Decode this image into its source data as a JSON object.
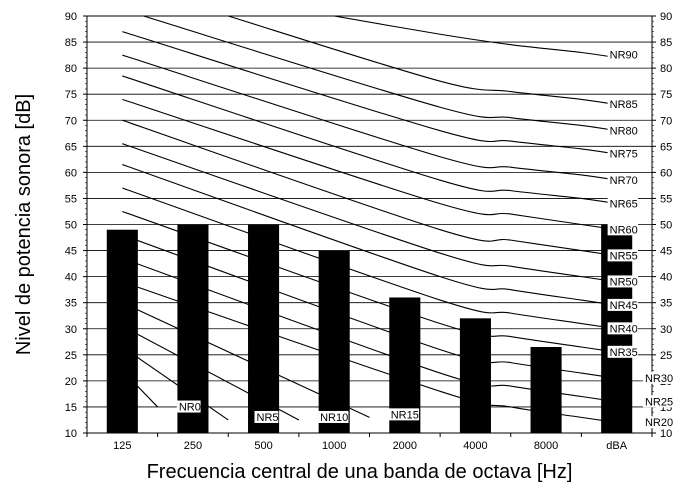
{
  "chart_data": {
    "type": "bar",
    "title": "",
    "xlabel": "Frecuencia central de una banda de octava [Hz]",
    "ylabel": "Nivel de potencia sonora [dB]",
    "ylim": [
      10,
      90
    ],
    "yticks": [
      10,
      15,
      20,
      25,
      30,
      35,
      40,
      45,
      50,
      55,
      60,
      65,
      70,
      75,
      80,
      85,
      90
    ],
    "grid": true,
    "categories": [
      "125",
      "250",
      "500",
      "1000",
      "2000",
      "4000",
      "8000",
      "dBA"
    ],
    "series": [
      {
        "values": [
          49,
          50,
          50,
          45,
          36,
          32,
          26.5,
          50
        ],
        "color": "#000000"
      }
    ],
    "nr_curves": {
      "labels": [
        "NR0",
        "NR5",
        "NR10",
        "NR15",
        "NR20",
        "NR25",
        "NR30",
        "NR35",
        "NR40",
        "NR45",
        "NR50",
        "NR55",
        "NR60",
        "NR65",
        "NR70",
        "NR75",
        "NR80",
        "NR85",
        "NR90"
      ],
      "points": [
        [
          [
            0.5,
            22
          ],
          [
            1,
            15
          ]
        ],
        [
          [
            0.5,
            26.5
          ],
          [
            2,
            12.5
          ]
        ],
        [
          [
            0.5,
            30.5
          ],
          [
            3,
            12.5
          ]
        ],
        [
          [
            0.5,
            35
          ],
          [
            4,
            13
          ]
        ],
        [
          [
            0.5,
            39
          ],
          [
            5,
            18
          ],
          [
            6,
            15
          ],
          [
            7,
            13
          ],
          [
            7.5,
            12
          ]
        ],
        [
          [
            0.5,
            43.5
          ],
          [
            5,
            21.5
          ],
          [
            6,
            19
          ],
          [
            7,
            17
          ],
          [
            7.5,
            16
          ]
        ],
        [
          [
            0.5,
            48
          ],
          [
            5,
            26
          ],
          [
            6,
            23.5
          ],
          [
            7,
            21.5
          ],
          [
            7.5,
            20.5
          ]
        ],
        [
          [
            0.5,
            52.5
          ],
          [
            5,
            31
          ],
          [
            6,
            28.5
          ],
          [
            7,
            26.5
          ],
          [
            7.5,
            25.5
          ]
        ],
        [
          [
            0.5,
            57
          ],
          [
            5,
            35.5
          ],
          [
            6,
            33
          ],
          [
            7,
            31
          ],
          [
            7.5,
            30
          ]
        ],
        [
          [
            0.5,
            61.5
          ],
          [
            5,
            40
          ],
          [
            6,
            37.5
          ],
          [
            7,
            35.5
          ],
          [
            7.5,
            34.5
          ]
        ],
        [
          [
            0.5,
            65.5
          ],
          [
            5,
            44.5
          ],
          [
            6,
            42
          ],
          [
            7,
            40
          ],
          [
            7.5,
            39
          ]
        ],
        [
          [
            0.5,
            70
          ],
          [
            5,
            49
          ],
          [
            6,
            47
          ],
          [
            7,
            45
          ],
          [
            7.5,
            44
          ]
        ],
        [
          [
            0.5,
            74
          ],
          [
            5,
            54
          ],
          [
            6,
            52
          ],
          [
            7,
            50
          ],
          [
            7.5,
            49
          ]
        ],
        [
          [
            0.5,
            78.5
          ],
          [
            5,
            58.5
          ],
          [
            6,
            56.5
          ],
          [
            7,
            55
          ],
          [
            7.5,
            54
          ]
        ],
        [
          [
            0.5,
            82.5
          ],
          [
            5,
            63
          ],
          [
            6,
            61
          ],
          [
            7,
            59.5
          ],
          [
            7.5,
            58.5
          ]
        ],
        [
          [
            0.5,
            87
          ],
          [
            5,
            68
          ],
          [
            6,
            66
          ],
          [
            7,
            64.5
          ],
          [
            7.5,
            63.5
          ]
        ],
        [
          [
            0.8,
            90
          ],
          [
            5,
            72.5
          ],
          [
            6,
            70.5
          ],
          [
            7,
            69
          ],
          [
            7.5,
            68
          ]
        ],
        [
          [
            2,
            90
          ],
          [
            5,
            77.5
          ],
          [
            6,
            75.5
          ],
          [
            7,
            74
          ],
          [
            7.5,
            73
          ]
        ],
        [
          [
            3.5,
            90
          ],
          [
            5,
            86.5
          ],
          [
            6,
            84.5
          ],
          [
            7,
            83
          ],
          [
            7.5,
            82
          ]
        ]
      ],
      "label_positions": [
        [
          1.3,
          14.5
        ],
        [
          2.4,
          12.5
        ],
        [
          3.3,
          12.5
        ],
        [
          4.3,
          13
        ],
        [
          7.9,
          11.5
        ],
        [
          7.9,
          15.5
        ],
        [
          7.9,
          20
        ],
        [
          7.4,
          25
        ],
        [
          7.4,
          29.5
        ],
        [
          7.4,
          34
        ],
        [
          7.4,
          38.5
        ],
        [
          7.4,
          43.5
        ],
        [
          7.4,
          48.5
        ],
        [
          7.4,
          53.5
        ],
        [
          7.4,
          58
        ],
        [
          7.4,
          63
        ],
        [
          7.4,
          67.5
        ],
        [
          7.4,
          72.5
        ],
        [
          7.4,
          82
        ]
      ]
    }
  }
}
